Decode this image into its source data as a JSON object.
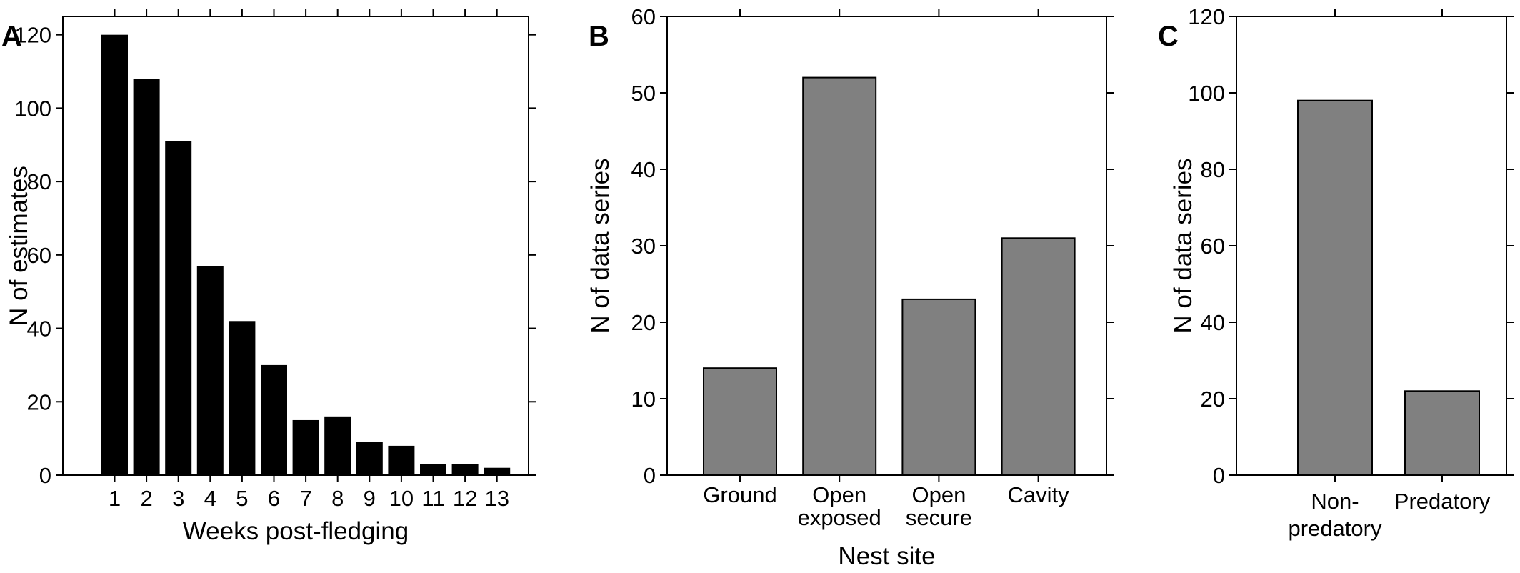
{
  "panels": [
    {
      "letter": "A",
      "chart_data": {
        "type": "bar",
        "categories": [
          "1",
          "2",
          "3",
          "4",
          "5",
          "6",
          "7",
          "8",
          "9",
          "10",
          "11",
          "12",
          "13"
        ],
        "values": [
          120,
          108,
          91,
          57,
          42,
          30,
          15,
          16,
          9,
          8,
          3,
          3,
          2
        ],
        "xlabel": "Weeks post-fledging",
        "ylabel": "N of estimates",
        "ylim": [
          0,
          125
        ],
        "yticks": [
          0,
          20,
          40,
          60,
          80,
          100,
          120
        ],
        "bar_color": "#000000",
        "grid": false,
        "legend": false
      }
    },
    {
      "letter": "B",
      "chart_data": {
        "type": "bar",
        "categories": [
          [
            "Ground"
          ],
          [
            "Open",
            "exposed"
          ],
          [
            "Open",
            "secure"
          ],
          [
            "Cavity"
          ]
        ],
        "values": [
          14,
          52,
          23,
          31
        ],
        "xlabel": "Nest site",
        "ylabel": "N of data series",
        "ylim": [
          0,
          60
        ],
        "yticks": [
          0,
          10,
          20,
          30,
          40,
          50,
          60
        ],
        "bar_color": "#808080",
        "grid": false,
        "legend": false
      }
    },
    {
      "letter": "C",
      "chart_data": {
        "type": "bar",
        "categories": [
          [
            "Non-",
            "predatory"
          ],
          [
            "Predatory"
          ]
        ],
        "values": [
          98,
          22
        ],
        "xlabel": "",
        "ylabel": "N of data series",
        "ylim": [
          0,
          120
        ],
        "yticks": [
          0,
          20,
          40,
          60,
          80,
          100,
          120
        ],
        "bar_color": "#808080",
        "grid": false,
        "legend": false
      }
    }
  ]
}
